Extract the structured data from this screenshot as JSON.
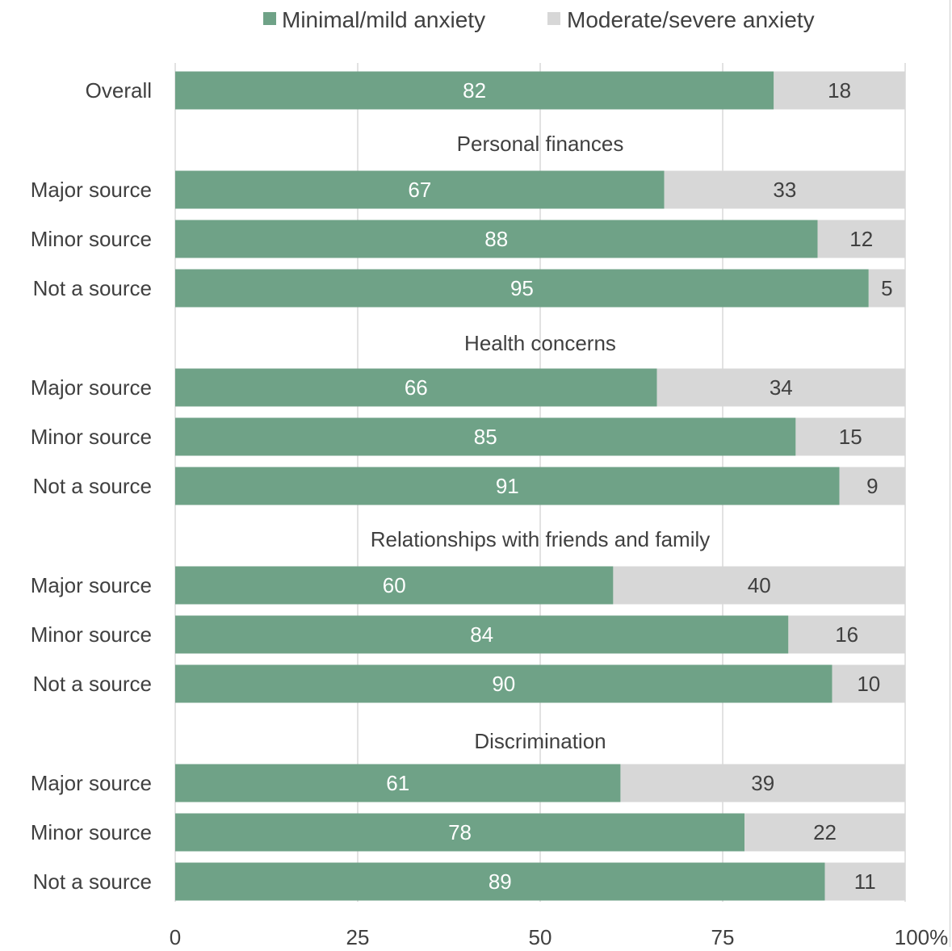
{
  "chart_data": {
    "type": "bar",
    "orientation": "horizontal",
    "stacked": true,
    "title": "",
    "xlabel": "",
    "ylabel": "",
    "xlim": [
      0,
      100
    ],
    "x_ticks": [
      0,
      25,
      50,
      75,
      100
    ],
    "x_tick_labels": [
      "0",
      "25",
      "50",
      "75",
      "100"
    ],
    "x_unit": "%",
    "grid": true,
    "legend_position": "top",
    "series": [
      {
        "name": "Minimal/mild anxiety",
        "color": "#6fa287"
      },
      {
        "name": "Moderate/severe anxiety",
        "color": "#d7d7d7"
      }
    ],
    "rows": [
      {
        "group": "",
        "label": "Overall",
        "values": [
          82,
          18
        ]
      },
      {
        "group": "Personal finances",
        "label": "Major source",
        "values": [
          67,
          33
        ]
      },
      {
        "group": "Personal finances",
        "label": "Minor source",
        "values": [
          88,
          12
        ]
      },
      {
        "group": "Personal finances",
        "label": "Not a source",
        "values": [
          95,
          5
        ]
      },
      {
        "group": "Health concerns",
        "label": "Major source",
        "values": [
          66,
          34
        ]
      },
      {
        "group": "Health concerns",
        "label": "Minor source",
        "values": [
          85,
          15
        ]
      },
      {
        "group": "Health concerns",
        "label": "Not a source",
        "values": [
          91,
          9
        ]
      },
      {
        "group": "Relationships with friends and family",
        "label": "Major source",
        "values": [
          60,
          40
        ]
      },
      {
        "group": "Relationships with friends and family",
        "label": "Minor source",
        "values": [
          84,
          16
        ]
      },
      {
        "group": "Relationships with friends and family",
        "label": "Not a source",
        "values": [
          90,
          10
        ]
      },
      {
        "group": "Discrimination",
        "label": "Major source",
        "values": [
          61,
          39
        ]
      },
      {
        "group": "Discrimination",
        "label": "Minor source",
        "values": [
          78,
          22
        ]
      },
      {
        "group": "Discrimination",
        "label": "Not a source",
        "values": [
          89,
          11
        ]
      }
    ],
    "colors": {
      "grid": "#d9d9d9",
      "axis_text": "#404040",
      "label_on_dark": "#ffffff",
      "label_on_light": "#404040",
      "frame_right": "#d9d9d9"
    }
  }
}
